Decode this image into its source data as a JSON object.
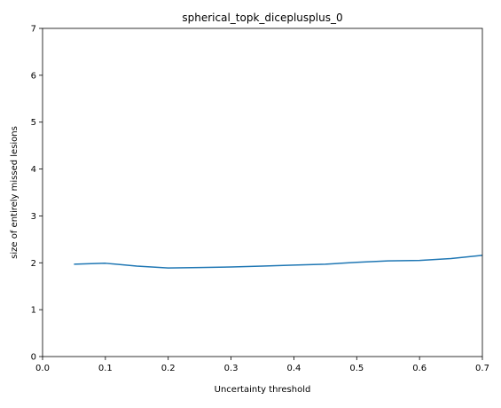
{
  "chart_data": {
    "type": "line",
    "title": "spherical_topk_diceplusplus_0",
    "xlabel": "Uncertainty threshold",
    "ylabel": "size of entirely missed lesions",
    "xlim": [
      0.0,
      0.7
    ],
    "ylim": [
      0,
      7
    ],
    "xticks": [
      "0.0",
      "0.1",
      "0.2",
      "0.3",
      "0.4",
      "0.5",
      "0.6",
      "0.7"
    ],
    "yticks": [
      "0",
      "1",
      "2",
      "3",
      "4",
      "5",
      "6",
      "7"
    ],
    "grid": false,
    "series": [
      {
        "color": "#1f77b4",
        "x": [
          0.05,
          0.1,
          0.15,
          0.2,
          0.25,
          0.3,
          0.35,
          0.4,
          0.45,
          0.5,
          0.55,
          0.6,
          0.65,
          0.7
        ],
        "y": [
          1.97,
          1.99,
          1.93,
          1.89,
          1.9,
          1.91,
          1.93,
          1.95,
          1.97,
          2.01,
          2.04,
          2.05,
          2.09,
          2.16
        ]
      }
    ]
  }
}
